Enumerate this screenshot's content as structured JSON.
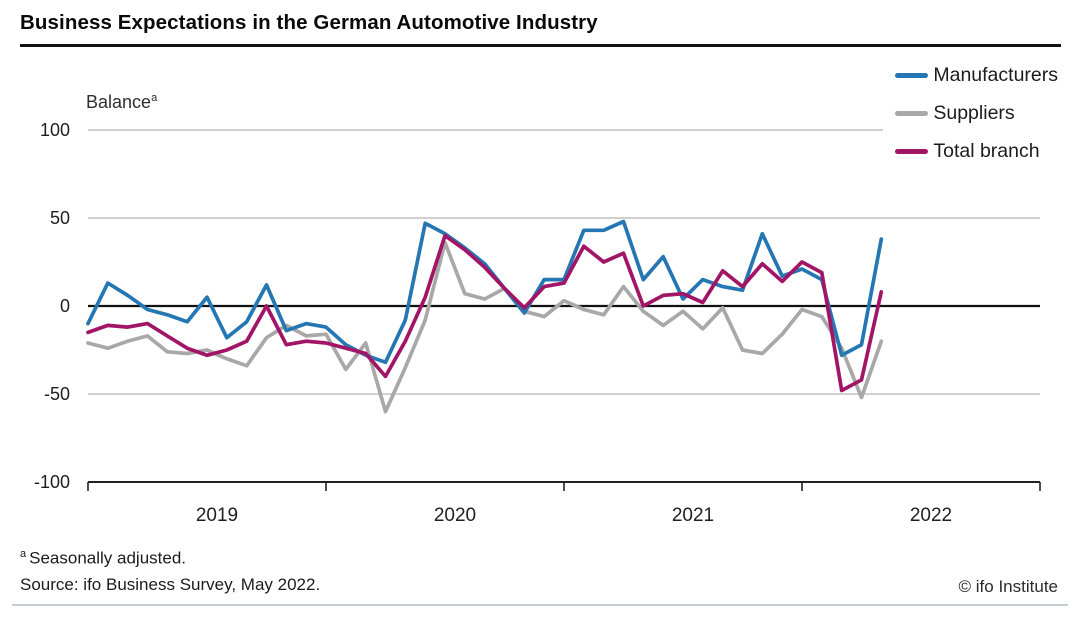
{
  "title": "Business Expectations in the German Automotive Industry",
  "y_axis": {
    "label": "Balance",
    "label_sup": "a",
    "ticks": [
      100,
      50,
      0,
      -50,
      -100
    ]
  },
  "x_axis": {
    "years": [
      "2019",
      "2020",
      "2021",
      "2022"
    ]
  },
  "footnotes": {
    "sup": "a",
    "adjusted": "Seasonally adjusted.",
    "source": "Source: ifo Business Survey, May 2022.",
    "copyright": "© ifo Institute"
  },
  "chart_data": {
    "type": "line",
    "title": "Business Expectations in the German Automotive Industry",
    "ylabel": "Balance (seasonally adjusted)",
    "ylim": [
      -100,
      100
    ],
    "grid": "horizontal",
    "legend_position": "top-right",
    "x_monthly_from": "2019-01",
    "x_monthly_to": "2022-05",
    "x_tick_years": [
      "2019",
      "2020",
      "2021",
      "2022"
    ],
    "series": [
      {
        "name": "Manufacturers",
        "color": "#2577b3",
        "values": [
          -10,
          13,
          6,
          -2,
          -5,
          -9,
          5,
          -18,
          -9,
          12,
          -14,
          -10,
          -12,
          -22,
          -28,
          -32,
          -8,
          47,
          41,
          33,
          24,
          10,
          -4,
          15,
          15,
          43,
          43,
          48,
          15,
          28,
          4,
          15,
          11,
          9,
          41,
          17,
          21,
          15,
          -28,
          -22,
          38
        ]
      },
      {
        "name": "Suppliers",
        "color": "#a8a8a8",
        "values": [
          -21,
          -24,
          -20,
          -17,
          -26,
          -27,
          -25,
          -30,
          -34,
          -18,
          -11,
          -17,
          -16,
          -36,
          -21,
          -60,
          -35,
          -8,
          36,
          7,
          4,
          10,
          -3,
          -6,
          3,
          -2,
          -5,
          11,
          -3,
          -11,
          -3,
          -13,
          -1,
          -25,
          -27,
          -16,
          -2,
          -6,
          -24,
          -52,
          -20
        ]
      },
      {
        "name": "Total branch",
        "color": "#a21566",
        "values": [
          -15,
          -11,
          -12,
          -10,
          -17,
          -24,
          -28,
          -25,
          -20,
          0,
          -22,
          -20,
          -21,
          -24,
          -27,
          -40,
          -20,
          5,
          40,
          32,
          22,
          10,
          -1,
          11,
          13,
          34,
          25,
          30,
          0,
          6,
          7,
          2,
          20,
          11,
          24,
          14,
          25,
          19,
          -48,
          -42,
          8
        ]
      }
    ],
    "colors": {
      "zero_line": "#111111",
      "gridline": "#b3b3b3",
      "axis": "#222222"
    }
  }
}
